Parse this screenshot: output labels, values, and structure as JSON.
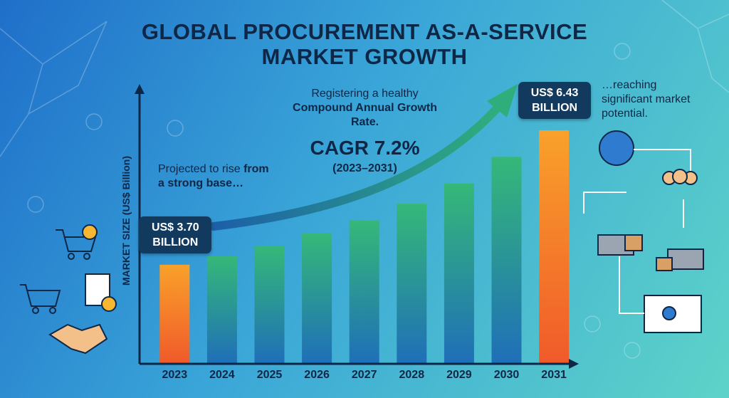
{
  "chart_data": {
    "type": "bar",
    "title": [
      "GLOBAL PROCUREMENT AS-A-SERVICE",
      "MARKET GROWTH"
    ],
    "y_label": "MARKET SIZE (US$ Billion)",
    "categories": [
      "2023",
      "2024",
      "2025",
      "2026",
      "2027",
      "2028",
      "2029",
      "2030",
      "2031"
    ],
    "values": [
      3.7,
      3.87,
      4.08,
      4.34,
      4.6,
      4.94,
      5.35,
      5.89,
      6.43
    ],
    "value_labels": [
      "US$ 3.70 BILLION",
      null,
      null,
      null,
      null,
      null,
      null,
      null,
      "US$ 6.43 BILLION"
    ],
    "color": [
      "#35b878",
      "#1f6fb8"
    ],
    "highlight_color": [
      "#f9a12a",
      "#f05a2a"
    ],
    "ylim": [
      1.7,
      7.27
    ],
    "annotations": {
      "start": {
        "lead": "Projected to rise",
        "emph": "from a strong base…"
      },
      "growth": {
        "lead": "Registering a healthy",
        "emph": "Compound Annual Growth Rate.",
        "cagr": "CAGR 7.2%",
        "period": "(2023–2031)"
      },
      "end": "…reaching significant market potential."
    }
  }
}
